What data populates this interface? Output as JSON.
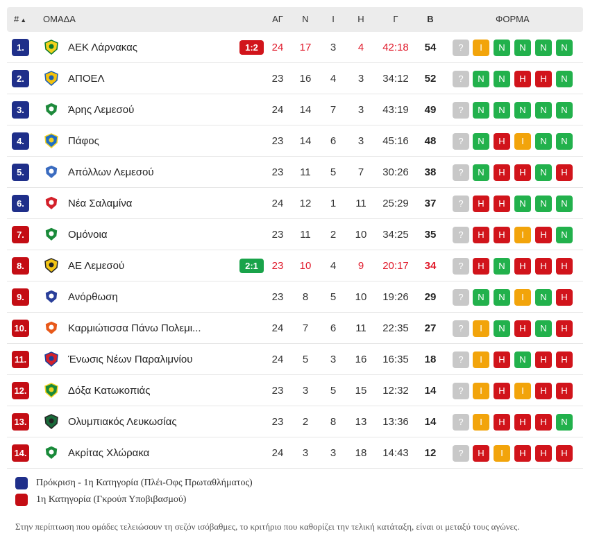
{
  "header": {
    "pos": "#",
    "sort_arrow": "▲",
    "team": "ΟΜΑΔΑ",
    "played": "ΑΓ",
    "won": "Ν",
    "drawn": "Ι",
    "lost": "Η",
    "goals": "Γ",
    "points": "Β",
    "form": "ΦΟΡΜΑ"
  },
  "colors": {
    "qualify": "#1f2f8a",
    "relegation": "#c40d14",
    "win": "#22b14c",
    "loss": "#d1141b",
    "draw": "#f2a40b",
    "unknown": "#c8c8c8"
  },
  "rows": [
    {
      "pos": "1.",
      "zone": "blue",
      "logo": "aek-larnaca-logo",
      "team": "ΑΕΚ Λάρνακας",
      "live": "1:2",
      "live_color": "red",
      "live_hl": true,
      "played": "24",
      "won": "17",
      "drawn": "3",
      "lost": "4",
      "goals": "42:18",
      "points": "54",
      "form": [
        "?",
        "I",
        "N",
        "N",
        "N",
        "N"
      ]
    },
    {
      "pos": "2.",
      "zone": "blue",
      "logo": "apoel-logo",
      "team": "ΑΠΟΕΛ",
      "live": "",
      "played": "23",
      "won": "16",
      "drawn": "4",
      "lost": "3",
      "goals": "34:12",
      "points": "52",
      "form": [
        "?",
        "N",
        "N",
        "H",
        "H",
        "N"
      ]
    },
    {
      "pos": "3.",
      "zone": "blue",
      "logo": "aris-limassol-logo",
      "team": "Άρης Λεμεσού",
      "live": "",
      "played": "24",
      "won": "14",
      "drawn": "7",
      "lost": "3",
      "goals": "43:19",
      "points": "49",
      "form": [
        "?",
        "N",
        "N",
        "N",
        "N",
        "N"
      ]
    },
    {
      "pos": "4.",
      "zone": "blue",
      "logo": "pafos-logo",
      "team": "Πάφος",
      "live": "",
      "played": "23",
      "won": "14",
      "drawn": "6",
      "lost": "3",
      "goals": "45:16",
      "points": "48",
      "form": [
        "?",
        "N",
        "H",
        "I",
        "N",
        "N"
      ]
    },
    {
      "pos": "5.",
      "zone": "blue",
      "logo": "apollon-logo",
      "team": "Απόλλων Λεμεσού",
      "live": "",
      "played": "23",
      "won": "11",
      "drawn": "5",
      "lost": "7",
      "goals": "30:26",
      "points": "38",
      "form": [
        "?",
        "N",
        "H",
        "H",
        "N",
        "H"
      ]
    },
    {
      "pos": "6.",
      "zone": "blue",
      "logo": "nea-salamina-logo",
      "team": "Νέα Σαλαμίνα",
      "live": "",
      "played": "24",
      "won": "12",
      "drawn": "1",
      "lost": "11",
      "goals": "25:29",
      "points": "37",
      "form": [
        "?",
        "H",
        "H",
        "N",
        "N",
        "N"
      ]
    },
    {
      "pos": "7.",
      "zone": "red",
      "logo": "omonia-logo",
      "team": "Ομόνοια",
      "live": "",
      "played": "23",
      "won": "11",
      "drawn": "2",
      "lost": "10",
      "goals": "34:25",
      "points": "35",
      "form": [
        "?",
        "H",
        "H",
        "I",
        "H",
        "N"
      ]
    },
    {
      "pos": "8.",
      "zone": "red",
      "logo": "ael-logo",
      "team": "ΑΕ Λεμεσού",
      "live": "2:1",
      "live_color": "green",
      "live_hl": true,
      "played": "23",
      "won": "10",
      "drawn": "4",
      "lost": "9",
      "goals": "20:17",
      "points": "34",
      "form": [
        "?",
        "H",
        "N",
        "H",
        "H",
        "H"
      ]
    },
    {
      "pos": "9.",
      "zone": "red",
      "logo": "anorthosis-logo",
      "team": "Ανόρθωση",
      "live": "",
      "played": "23",
      "won": "8",
      "drawn": "5",
      "lost": "10",
      "goals": "19:26",
      "points": "29",
      "form": [
        "?",
        "N",
        "N",
        "I",
        "N",
        "H"
      ]
    },
    {
      "pos": "10.",
      "zone": "red",
      "logo": "karmiotissa-logo",
      "team": "Καρμιώτισσα Πάνω Πολεμι...",
      "live": "",
      "played": "24",
      "won": "7",
      "drawn": "6",
      "lost": "11",
      "goals": "22:35",
      "points": "27",
      "form": [
        "?",
        "I",
        "N",
        "H",
        "N",
        "H"
      ]
    },
    {
      "pos": "11.",
      "zone": "red",
      "logo": "enp-logo",
      "team": "Ένωσις Νέων Παραλιμνίου",
      "live": "",
      "played": "24",
      "won": "5",
      "drawn": "3",
      "lost": "16",
      "goals": "16:35",
      "points": "18",
      "form": [
        "?",
        "I",
        "H",
        "N",
        "H",
        "H"
      ]
    },
    {
      "pos": "12.",
      "zone": "red",
      "logo": "doxa-logo",
      "team": "Δόξα Κατωκοπιάς",
      "live": "",
      "played": "23",
      "won": "3",
      "drawn": "5",
      "lost": "15",
      "goals": "12:32",
      "points": "14",
      "form": [
        "?",
        "I",
        "H",
        "I",
        "H",
        "H"
      ]
    },
    {
      "pos": "13.",
      "zone": "red",
      "logo": "olympiakos-logo",
      "team": "Ολυμπιακός Λευκωσίας",
      "live": "",
      "played": "23",
      "won": "2",
      "drawn": "8",
      "lost": "13",
      "goals": "13:36",
      "points": "14",
      "form": [
        "?",
        "I",
        "H",
        "H",
        "H",
        "N"
      ]
    },
    {
      "pos": "14.",
      "zone": "red",
      "logo": "akritas-logo",
      "team": "Ακρίτας Χλώρακα",
      "live": "",
      "played": "24",
      "won": "3",
      "drawn": "3",
      "lost": "18",
      "goals": "14:43",
      "points": "12",
      "form": [
        "?",
        "H",
        "I",
        "H",
        "H",
        "H"
      ]
    }
  ],
  "legend": {
    "qualify": "Πρόκριση - 1η Κατηγορία (Πλέι-Οφς Πρωταθλήματος)",
    "relegation": "1η Κατηγορία (Γκρούπ Υποβιβασμού)"
  },
  "note": "Στην περίπτωση που ομάδες τελειώσουν τη σεζόν ισόβαθμες, το κριτήριο που καθορίζει την τελική κατάταξη, είναι οι μεταξύ τους αγώνες."
}
